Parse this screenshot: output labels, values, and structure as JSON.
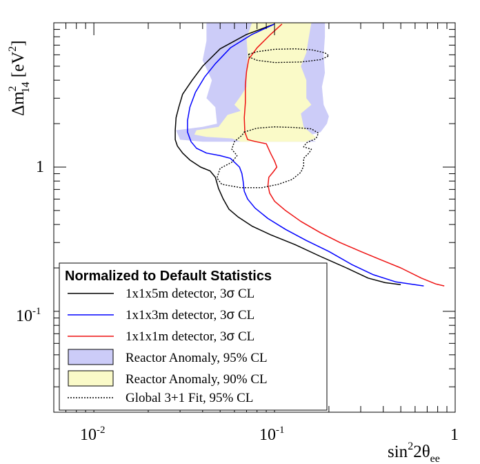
{
  "chart_data": {
    "type": "line",
    "x_scale": "log",
    "y_scale": "log",
    "xlim": [
      0.006,
      1.0
    ],
    "ylim": [
      0.02,
      10
    ],
    "xlabel": {
      "main": "sin",
      "sup": "2",
      "after": "2θ",
      "sub": "ee"
    },
    "ylabel": {
      "main": "Δm",
      "sup": "2",
      "sub": "14",
      "after": " [eV",
      "sup2": "2",
      "tail": "]"
    },
    "x_ticks": [
      {
        "value": 0.01,
        "label": "10",
        "sup": "-2"
      },
      {
        "value": 0.1,
        "label": "10",
        "sup": "-1"
      },
      {
        "value": 1,
        "label": "1",
        "sup": ""
      }
    ],
    "y_ticks": [
      {
        "value": 0.1,
        "label": "10",
        "sup": "-1"
      },
      {
        "value": 1,
        "label": "1",
        "sup": ""
      }
    ],
    "legend": {
      "title": "Normalized to Default Statistics",
      "position": "bottom-left",
      "entries": [
        {
          "key": "black",
          "pre": "1x1x5m detector, 3",
          "sym": "σ",
          "post": " CL"
        },
        {
          "key": "blue",
          "pre": "1x1x3m detector, 3",
          "sym": "σ",
          "post": " CL"
        },
        {
          "key": "red",
          "pre": "1x1x1m detector, 3",
          "sym": "σ",
          "post": " CL"
        },
        {
          "key": "ra95",
          "pre": "Reactor Anomaly, 95% CL",
          "sym": "",
          "post": ""
        },
        {
          "key": "ra90",
          "pre": "Reactor Anomaly, 90% CL",
          "sym": "",
          "post": ""
        },
        {
          "key": "global",
          "pre": "Global 3+1 Fit,  95% CL",
          "sym": "",
          "post": ""
        }
      ]
    },
    "series": [
      {
        "name": "1x1x5m detector, 3σ CL",
        "color": "#000000",
        "style": "solid",
        "points": [
          [
            0.1,
            9.8
          ],
          [
            0.07,
            8.3
          ],
          [
            0.05,
            6.6
          ],
          [
            0.04,
            5.0
          ],
          [
            0.035,
            4.0
          ],
          [
            0.031,
            3.2
          ],
          [
            0.0295,
            2.6
          ],
          [
            0.0285,
            2.2
          ],
          [
            0.0282,
            1.8
          ],
          [
            0.0282,
            1.55
          ],
          [
            0.029,
            1.4
          ],
          [
            0.031,
            1.25
          ],
          [
            0.034,
            1.12
          ],
          [
            0.039,
            1.0
          ],
          [
            0.044,
            0.94
          ],
          [
            0.047,
            0.85
          ],
          [
            0.049,
            0.71
          ],
          [
            0.052,
            0.6
          ],
          [
            0.056,
            0.51
          ],
          [
            0.063,
            0.45
          ],
          [
            0.075,
            0.39
          ],
          [
            0.095,
            0.34
          ],
          [
            0.13,
            0.29
          ],
          [
            0.18,
            0.24
          ],
          [
            0.25,
            0.2
          ],
          [
            0.33,
            0.17
          ],
          [
            0.41,
            0.158
          ],
          [
            0.5,
            0.153
          ]
        ]
      },
      {
        "name": "1x1x3m detector, 3σ CL",
        "color": "#0000ff",
        "style": "solid",
        "points": [
          [
            0.1,
            9.8
          ],
          [
            0.075,
            8.3
          ],
          [
            0.057,
            6.7
          ],
          [
            0.047,
            5.2
          ],
          [
            0.041,
            4.2
          ],
          [
            0.0365,
            3.3
          ],
          [
            0.034,
            2.6
          ],
          [
            0.033,
            2.1
          ],
          [
            0.033,
            1.75
          ],
          [
            0.0345,
            1.5
          ],
          [
            0.037,
            1.35
          ],
          [
            0.042,
            1.25
          ],
          [
            0.05,
            1.2
          ],
          [
            0.057,
            1.15
          ],
          [
            0.064,
            1.0
          ],
          [
            0.066,
            0.9
          ],
          [
            0.067,
            0.8
          ],
          [
            0.068,
            0.68
          ],
          [
            0.071,
            0.6
          ],
          [
            0.078,
            0.52
          ],
          [
            0.092,
            0.44
          ],
          [
            0.115,
            0.37
          ],
          [
            0.15,
            0.31
          ],
          [
            0.2,
            0.26
          ],
          [
            0.27,
            0.21
          ],
          [
            0.35,
            0.18
          ],
          [
            0.47,
            0.16
          ],
          [
            0.62,
            0.152
          ],
          [
            0.67,
            0.15
          ]
        ]
      },
      {
        "name": "1x1x1m detector, 3σ CL",
        "color": "#ee1111",
        "style": "solid",
        "points": [
          [
            0.11,
            9.8
          ],
          [
            0.095,
            8.3
          ],
          [
            0.08,
            6.7
          ],
          [
            0.072,
            5.6
          ],
          [
            0.07,
            4.6
          ],
          [
            0.069,
            3.7
          ],
          [
            0.069,
            2.8
          ],
          [
            0.068,
            2.2
          ],
          [
            0.0685,
            1.75
          ],
          [
            0.071,
            1.55
          ],
          [
            0.079,
            1.5
          ],
          [
            0.09,
            1.45
          ],
          [
            0.095,
            1.25
          ],
          [
            0.1,
            1.1
          ],
          [
            0.103,
            1.0
          ],
          [
            0.098,
            0.92
          ],
          [
            0.093,
            0.85
          ],
          [
            0.092,
            0.75
          ],
          [
            0.094,
            0.66
          ],
          [
            0.1,
            0.58
          ],
          [
            0.115,
            0.5
          ],
          [
            0.14,
            0.42
          ],
          [
            0.18,
            0.35
          ],
          [
            0.23,
            0.3
          ],
          [
            0.3,
            0.26
          ],
          [
            0.38,
            0.23
          ],
          [
            0.5,
            0.2
          ],
          [
            0.65,
            0.17
          ],
          [
            0.78,
            0.155
          ],
          [
            0.87,
            0.15
          ]
        ]
      },
      {
        "name": "Global 3+1 Fit, 95% CL (upper)",
        "color": "#000000",
        "style": "dotted",
        "closed": true,
        "points": [
          [
            0.072,
            6.05
          ],
          [
            0.08,
            6.3
          ],
          [
            0.1,
            6.55
          ],
          [
            0.13,
            6.6
          ],
          [
            0.16,
            6.5
          ],
          [
            0.19,
            6.2
          ],
          [
            0.2,
            5.9
          ],
          [
            0.18,
            5.55
          ],
          [
            0.14,
            5.35
          ],
          [
            0.1,
            5.3
          ],
          [
            0.08,
            5.5
          ],
          [
            0.072,
            5.8
          ]
        ]
      },
      {
        "name": "Global 3+1 Fit, 95% CL (lower)",
        "color": "#000000",
        "style": "dotted",
        "closed": true,
        "points": [
          [
            0.068,
            1.75
          ],
          [
            0.08,
            1.86
          ],
          [
            0.1,
            1.9
          ],
          [
            0.13,
            1.88
          ],
          [
            0.16,
            1.84
          ],
          [
            0.175,
            1.72
          ],
          [
            0.17,
            1.58
          ],
          [
            0.15,
            1.47
          ],
          [
            0.145,
            1.38
          ],
          [
            0.16,
            1.33
          ],
          [
            0.155,
            1.25
          ],
          [
            0.145,
            1.15
          ],
          [
            0.145,
            1.02
          ],
          [
            0.14,
            0.92
          ],
          [
            0.125,
            0.82
          ],
          [
            0.105,
            0.76
          ],
          [
            0.085,
            0.72
          ],
          [
            0.065,
            0.72
          ],
          [
            0.051,
            0.76
          ],
          [
            0.048,
            0.84
          ],
          [
            0.05,
            0.98
          ],
          [
            0.058,
            1.08
          ],
          [
            0.062,
            1.2
          ],
          [
            0.058,
            1.33
          ],
          [
            0.06,
            1.5
          ],
          [
            0.066,
            1.66
          ]
        ]
      }
    ],
    "regions": [
      {
        "name": "Reactor Anomaly, 95% CL",
        "color": "#ccccf8",
        "points": [
          [
            0.042,
            10
          ],
          [
            0.19,
            10
          ],
          [
            0.19,
            8
          ],
          [
            0.187,
            6
          ],
          [
            0.19,
            4.5
          ],
          [
            0.183,
            3.6
          ],
          [
            0.187,
            2.7
          ],
          [
            0.2,
            2.25
          ],
          [
            0.195,
            2.0
          ],
          [
            0.18,
            1.75
          ],
          [
            0.145,
            1.62
          ],
          [
            0.17,
            1.5
          ],
          [
            0.04,
            1.5
          ],
          [
            0.03,
            1.55
          ],
          [
            0.0285,
            1.8
          ],
          [
            0.04,
            1.9
          ],
          [
            0.048,
            2.0
          ],
          [
            0.047,
            2.6
          ],
          [
            0.042,
            3.0
          ],
          [
            0.045,
            4.0
          ],
          [
            0.04,
            5.5
          ],
          [
            0.042,
            7.5
          ]
        ]
      },
      {
        "name": "Reactor Anomaly, 90% CL",
        "color": "#fafac8",
        "points": [
          [
            0.075,
            10
          ],
          [
            0.16,
            10
          ],
          [
            0.155,
            8
          ],
          [
            0.15,
            6.2
          ],
          [
            0.14,
            5
          ],
          [
            0.15,
            4.0
          ],
          [
            0.15,
            3.0
          ],
          [
            0.16,
            2.7
          ],
          [
            0.14,
            2.35
          ],
          [
            0.145,
            1.9
          ],
          [
            0.17,
            1.6
          ],
          [
            0.15,
            1.5
          ],
          [
            0.065,
            1.5
          ],
          [
            0.058,
            1.58
          ],
          [
            0.042,
            1.62
          ],
          [
            0.036,
            1.68
          ],
          [
            0.037,
            1.8
          ],
          [
            0.049,
            1.9
          ],
          [
            0.052,
            2.1
          ],
          [
            0.055,
            2.3
          ],
          [
            0.065,
            2.45
          ],
          [
            0.06,
            2.7
          ],
          [
            0.065,
            3.1
          ],
          [
            0.07,
            3.6
          ],
          [
            0.07,
            4.5
          ],
          [
            0.071,
            6
          ],
          [
            0.07,
            7.8
          ]
        ]
      }
    ]
  }
}
